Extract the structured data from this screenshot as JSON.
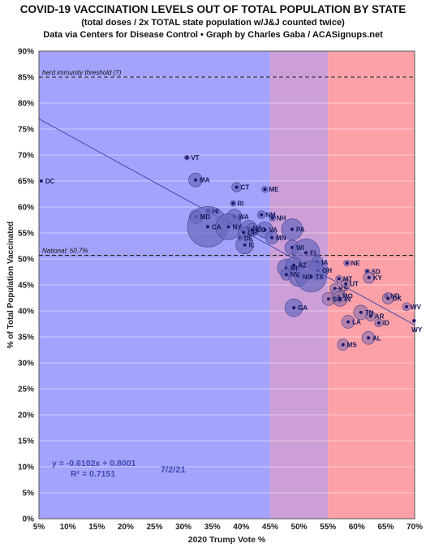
{
  "header": {
    "title": "COVID-19 VACCINATION LEVELS OUT OF TOTAL POPULATION BY STATE",
    "subtitle": "(total doses / 2x TOTAL state population w/J&J counted twice)",
    "source": "Data via Centers for Disease Control • Graph by Charles Gaba / ACASignups.net"
  },
  "colors": {
    "blue_zone": "#a3a3fb",
    "purple_zone": "#cc9fd8",
    "red_zone": "#fca1a8",
    "bubble": "#6a68bf",
    "bubble_red_zone": "#9a75a9",
    "trendline": "#3f4ab0",
    "label_text": "#141a5a"
  },
  "chart_data": {
    "type": "scatter",
    "xlabel": "2020 Trump Vote %",
    "ylabel": "% of Total Population Vaccinated",
    "xlim": [
      0.05,
      0.7
    ],
    "ylim": [
      0,
      0.9
    ],
    "x_ticks": [
      "5%",
      "10%",
      "15%",
      "20%",
      "25%",
      "30%",
      "35%",
      "40%",
      "45%",
      "50%",
      "55%",
      "60%",
      "65%",
      "70%"
    ],
    "y_ticks": [
      "0%",
      "5%",
      "10%",
      "15%",
      "20%",
      "25%",
      "30%",
      "35%",
      "40%",
      "45%",
      "50%",
      "55%",
      "60%",
      "65%",
      "70%",
      "75%",
      "80%",
      "85%",
      "90%"
    ],
    "grid": "horizontal",
    "zones": [
      {
        "from": 0.05,
        "to": 0.45,
        "color": "blue"
      },
      {
        "from": 0.45,
        "to": 0.55,
        "color": "purple"
      },
      {
        "from": 0.55,
        "to": 0.7,
        "color": "red"
      }
    ],
    "reference_lines": [
      {
        "y": 0.85,
        "label": "herd immunity threshold (?)"
      },
      {
        "y": 0.507,
        "label": "National: 50.7%"
      }
    ],
    "trendline": {
      "slope": -0.6102,
      "intercept": 0.8001,
      "equation": "y = -0.6102x + 0.8001",
      "r2": "R² = 0.7151"
    },
    "date_annotation": "7/2/21",
    "points": [
      {
        "state": "DC",
        "x": 0.054,
        "y": 0.65,
        "r": 1.5
      },
      {
        "state": "VT",
        "x": 0.306,
        "y": 0.695,
        "r": 3
      },
      {
        "state": "MA",
        "x": 0.321,
        "y": 0.652,
        "r": 8.5
      },
      {
        "state": "CT",
        "x": 0.392,
        "y": 0.638,
        "r": 6
      },
      {
        "state": "ME",
        "x": 0.441,
        "y": 0.634,
        "r": 4
      },
      {
        "state": "RI",
        "x": 0.386,
        "y": 0.607,
        "r": 3.5
      },
      {
        "state": "HI",
        "x": 0.343,
        "y": 0.592,
        "r": 4
      },
      {
        "state": "MD",
        "x": 0.322,
        "y": 0.581,
        "r": 8.5
      },
      {
        "state": "WA",
        "x": 0.388,
        "y": 0.581,
        "r": 9.5
      },
      {
        "state": "NM",
        "x": 0.435,
        "y": 0.585,
        "r": 5
      },
      {
        "state": "NH",
        "x": 0.454,
        "y": 0.579,
        "r": 4
      },
      {
        "state": "CA",
        "x": 0.342,
        "y": 0.562,
        "r": 25
      },
      {
        "state": "NY",
        "x": 0.378,
        "y": 0.562,
        "r": 16
      },
      {
        "state": "NJ",
        "x": 0.413,
        "y": 0.559,
        "r": 10
      },
      {
        "state": "CO",
        "x": 0.419,
        "y": 0.556,
        "r": 8
      },
      {
        "state": "VA",
        "x": 0.441,
        "y": 0.556,
        "r": 10
      },
      {
        "state": "OR",
        "x": 0.404,
        "y": 0.551,
        "r": 7
      },
      {
        "state": "PA",
        "x": 0.488,
        "y": 0.557,
        "r": 13
      },
      {
        "state": "MN",
        "x": 0.453,
        "y": 0.541,
        "r": 8
      },
      {
        "state": "DE",
        "x": 0.398,
        "y": 0.54,
        "r": 3
      },
      {
        "state": "IL",
        "x": 0.406,
        "y": 0.527,
        "r": 11
      },
      {
        "state": "WI",
        "x": 0.488,
        "y": 0.522,
        "r": 9
      },
      {
        "state": "FL",
        "x": 0.512,
        "y": 0.512,
        "r": 17
      },
      {
        "state": "IA",
        "x": 0.532,
        "y": 0.494,
        "r": 7
      },
      {
        "state": "MI",
        "x": 0.478,
        "y": 0.483,
        "r": 11
      },
      {
        "state": "AZ",
        "x": 0.491,
        "y": 0.488,
        "r": 10
      },
      {
        "state": "OH",
        "x": 0.533,
        "y": 0.478,
        "r": 12
      },
      {
        "state": "NV",
        "x": 0.478,
        "y": 0.47,
        "r": 7
      },
      {
        "state": "NC",
        "x": 0.499,
        "y": 0.466,
        "r": 12
      },
      {
        "state": "TX",
        "x": 0.521,
        "y": 0.466,
        "r": 19
      },
      {
        "state": "NE",
        "x": 0.583,
        "y": 0.492,
        "r": 4
      },
      {
        "state": "SD",
        "x": 0.618,
        "y": 0.476,
        "r": 3
      },
      {
        "state": "KY",
        "x": 0.621,
        "y": 0.464,
        "r": 7
      },
      {
        "state": "MT",
        "x": 0.569,
        "y": 0.462,
        "r": 4
      },
      {
        "state": "UT",
        "x": 0.581,
        "y": 0.452,
        "r": 6
      },
      {
        "state": "KS",
        "x": 0.562,
        "y": 0.443,
        "r": 6
      },
      {
        "state": "MO",
        "x": 0.568,
        "y": 0.429,
        "r": 9
      },
      {
        "state": "SC",
        "x": 0.551,
        "y": 0.423,
        "r": 8
      },
      {
        "state": "IN",
        "x": 0.571,
        "y": 0.423,
        "r": 9
      },
      {
        "state": "ND",
        "x": 0.651,
        "y": 0.429,
        "r": 3
      },
      {
        "state": "OK",
        "x": 0.654,
        "y": 0.424,
        "r": 7
      },
      {
        "state": "WV",
        "x": 0.686,
        "y": 0.408,
        "r": 5
      },
      {
        "state": "GA",
        "x": 0.491,
        "y": 0.406,
        "r": 11
      },
      {
        "state": "TN",
        "x": 0.607,
        "y": 0.397,
        "r": 9
      },
      {
        "state": "AR",
        "x": 0.624,
        "y": 0.39,
        "r": 6
      },
      {
        "state": "LA",
        "x": 0.585,
        "y": 0.379,
        "r": 8
      },
      {
        "state": "ID",
        "x": 0.638,
        "y": 0.377,
        "r": 5
      },
      {
        "state": "WY",
        "x": 0.699,
        "y": 0.381,
        "r": 2
      },
      {
        "state": "AL",
        "x": 0.62,
        "y": 0.348,
        "r": 8
      },
      {
        "state": "MS",
        "x": 0.576,
        "y": 0.335,
        "r": 7
      }
    ]
  }
}
